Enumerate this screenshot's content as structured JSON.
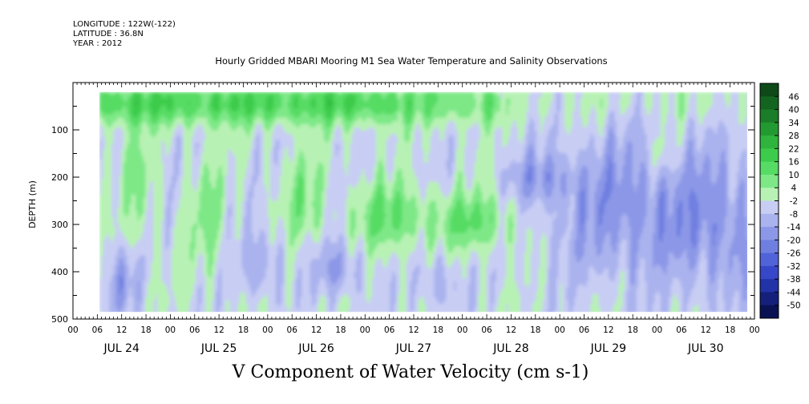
{
  "header": {
    "longitude": "LONGITUDE : 122W(-122)",
    "latitude": "LATITUDE : 36.8N",
    "year": "YEAR : 2012"
  },
  "chart_data": {
    "type": "heatmap",
    "title": "Hourly Gridded MBARI Mooring M1 Sea Water Temperature and Salinity Observations",
    "ylabel": "DEPTH (m)",
    "xlabel": "",
    "colorbar_title": "V Component of Water Velocity (cm s-1)",
    "y_ticks": [
      100,
      200,
      300,
      400,
      500
    ],
    "ylim": [
      0,
      500
    ],
    "y_inverted": true,
    "hour_ticks": [
      "00",
      "06",
      "12",
      "18",
      "00",
      "06",
      "12",
      "18",
      "00",
      "06",
      "12",
      "18",
      "00",
      "06",
      "12",
      "18",
      "00",
      "06",
      "12",
      "18",
      "00",
      "06",
      "12",
      "18",
      "00",
      "06",
      "12",
      "18",
      "00"
    ],
    "day_labels": [
      "JUL 24",
      "JUL 25",
      "JUL 26",
      "JUL 27",
      "JUL 28",
      "JUL 29",
      "JUL 30"
    ],
    "colorbar_levels": [
      46,
      40,
      34,
      28,
      22,
      16,
      10,
      4,
      -2,
      -8,
      -14,
      -20,
      -26,
      -32,
      -38,
      -44,
      -50
    ],
    "colorbar_colors": [
      "#0d4a18",
      "#13641f",
      "#1b7d27",
      "#239a31",
      "#2fb53d",
      "#3dcb4c",
      "#56dc64",
      "#7ee887",
      "#b7f2b4",
      "#c8cdf4",
      "#aab3ee",
      "#8c98e7",
      "#6f7fe0",
      "#5163d8",
      "#3648c9",
      "#2233a8",
      "#15207a",
      "#0a1253"
    ],
    "features": {
      "surface_band": "strong positive (green) velocities 20-90 m across JUL 24-27",
      "deep_region": "negative (blue) velocities dominate JUL 29-30 below 100 m",
      "data_start": "data begins ~JUL 24 06:00, no data above ~20 m"
    }
  }
}
